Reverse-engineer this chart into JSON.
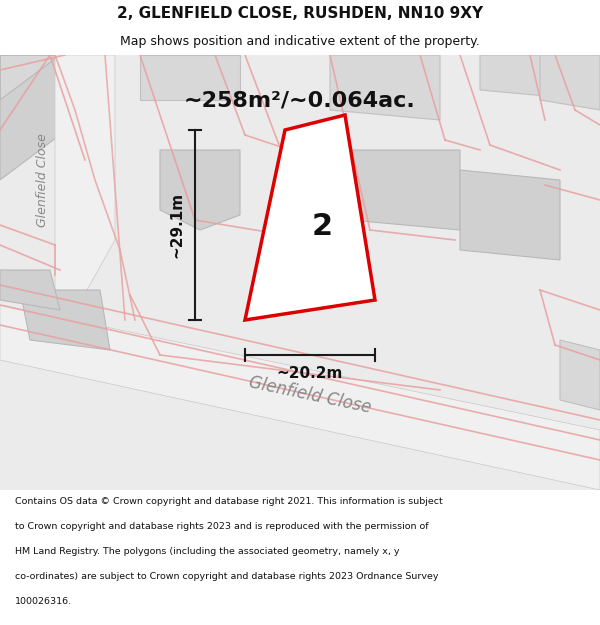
{
  "title": "2, GLENFIELD CLOSE, RUSHDEN, NN10 9XY",
  "subtitle": "Map shows position and indicative extent of the property.",
  "area_label": "~258m²/~0.064ac.",
  "plot_number": "2",
  "dim_height": "~29.1m",
  "dim_width": "~20.2m",
  "street_label_map": "Glenfield Close",
  "street_label_left": "Glenfield Close",
  "footer_lines": [
    "Contains OS data © Crown copyright and database right 2021. This information is subject",
    "to Crown copyright and database rights 2023 and is reproduced with the permission of",
    "HM Land Registry. The polygons (including the associated geometry, namely x, y",
    "co-ordinates) are subject to Crown copyright and database rights 2023 Ordnance Survey",
    "100026316."
  ],
  "plot_fill": "#ffffff",
  "plot_edge": "#dd0000",
  "title_color": "#111111",
  "footer_color": "#111111",
  "road_line_color": "#e8a0a0"
}
